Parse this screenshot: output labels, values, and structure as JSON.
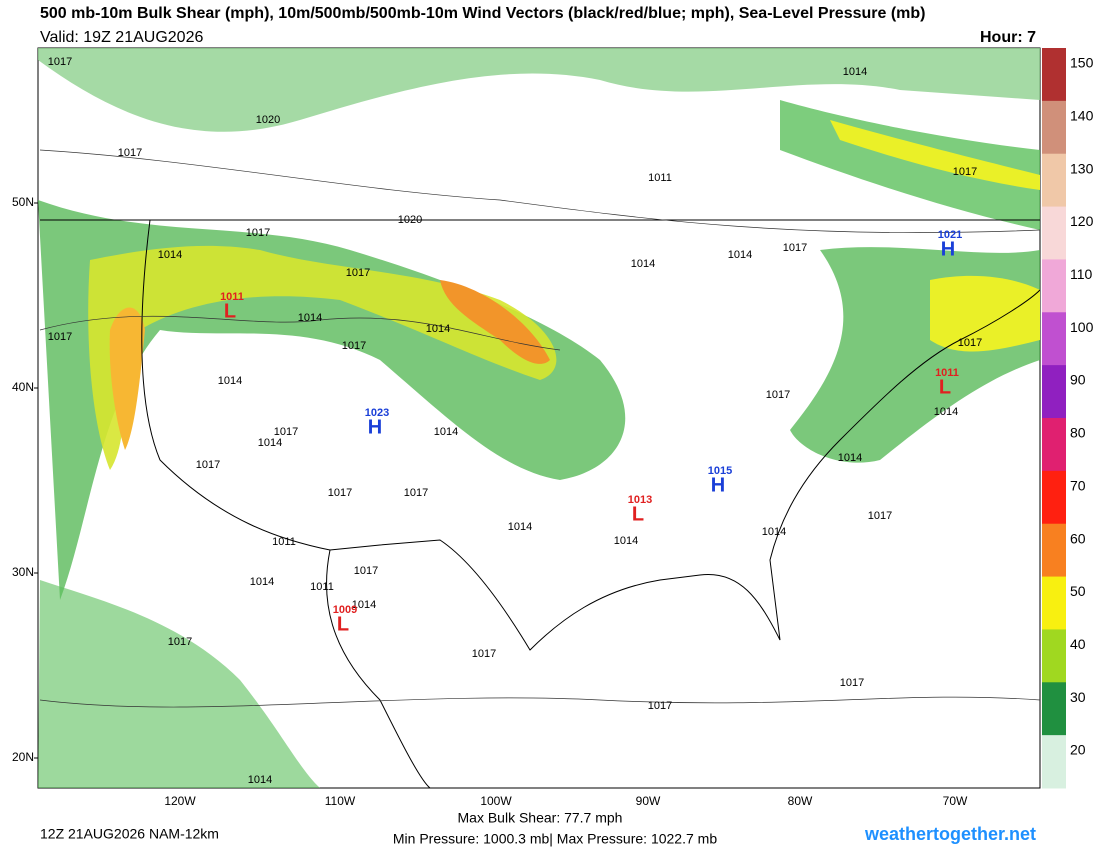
{
  "header": {
    "title": "500 mb-10m Bulk Shear (mph), 10m/500mb/500mb-10m Wind Vectors (black/red/blue; mph), Sea-Level Pressure (mb)",
    "valid": "Valid: 19Z 21AUG2026",
    "hour": "Hour: 7"
  },
  "colorbar": {
    "ticks": [
      150,
      140,
      130,
      120,
      110,
      100,
      90,
      80,
      70,
      60,
      50,
      40,
      30,
      20
    ]
  },
  "latitudes": [
    "50N",
    "40N",
    "30N",
    "20N"
  ],
  "longitudes": [
    "120W",
    "110W",
    "100W",
    "90W",
    "80W",
    "70W"
  ],
  "isobar_labels": [
    "1017",
    "1020",
    "1017",
    "1011",
    "1014",
    "1017",
    "1020",
    "1017",
    "1014",
    "1017",
    "1014",
    "1014",
    "1017",
    "1017",
    "1014",
    "1014",
    "1014",
    "1017",
    "1017",
    "1014",
    "1017",
    "1017",
    "1014",
    "1014",
    "1017",
    "1017",
    "1017",
    "1014",
    "1014",
    "1011",
    "1017",
    "1014",
    "1011",
    "1014",
    "1017",
    "1017",
    "1017",
    "1017",
    "1017",
    "1014",
    "1014",
    "1014"
  ],
  "centers": [
    {
      "type": "H",
      "pressure": "1023"
    },
    {
      "type": "H",
      "pressure": "1015"
    },
    {
      "type": "H",
      "pressure": "1021"
    },
    {
      "type": "L",
      "pressure": "1013"
    },
    {
      "type": "L",
      "pressure": "1011"
    },
    {
      "type": "L",
      "pressure": "1009"
    },
    {
      "type": "L",
      "pressure": "1011"
    }
  ],
  "footer": {
    "run": "12Z 21AUG2026 NAM-12km",
    "max_shear": "Max Bulk Shear:  77.7 mph",
    "pressure_range": "Min Pressure: 1000.3 mb| Max Pressure: 1022.7 mb",
    "credit": "weathertogether.net"
  }
}
